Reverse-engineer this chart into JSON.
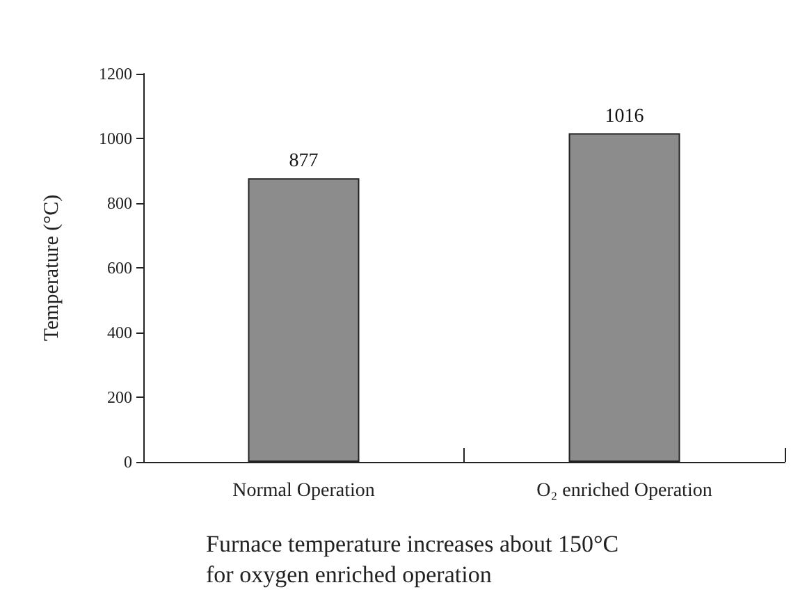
{
  "chart_data": {
    "type": "bar",
    "ylabel": "Temperature (°C)",
    "categories": [
      "Normal Operation",
      "O₂ enriched Operation"
    ],
    "values": [
      877,
      1016
    ],
    "color": "#8c8c8c",
    "ylim": [
      0,
      1200
    ],
    "yticks": [
      0,
      200,
      400,
      600,
      800,
      1000,
      1200
    ],
    "grid": false,
    "data_labels": true,
    "annotations": [
      "Furnace temperature increases about 150°C for oxygen enriched operation"
    ]
  }
}
